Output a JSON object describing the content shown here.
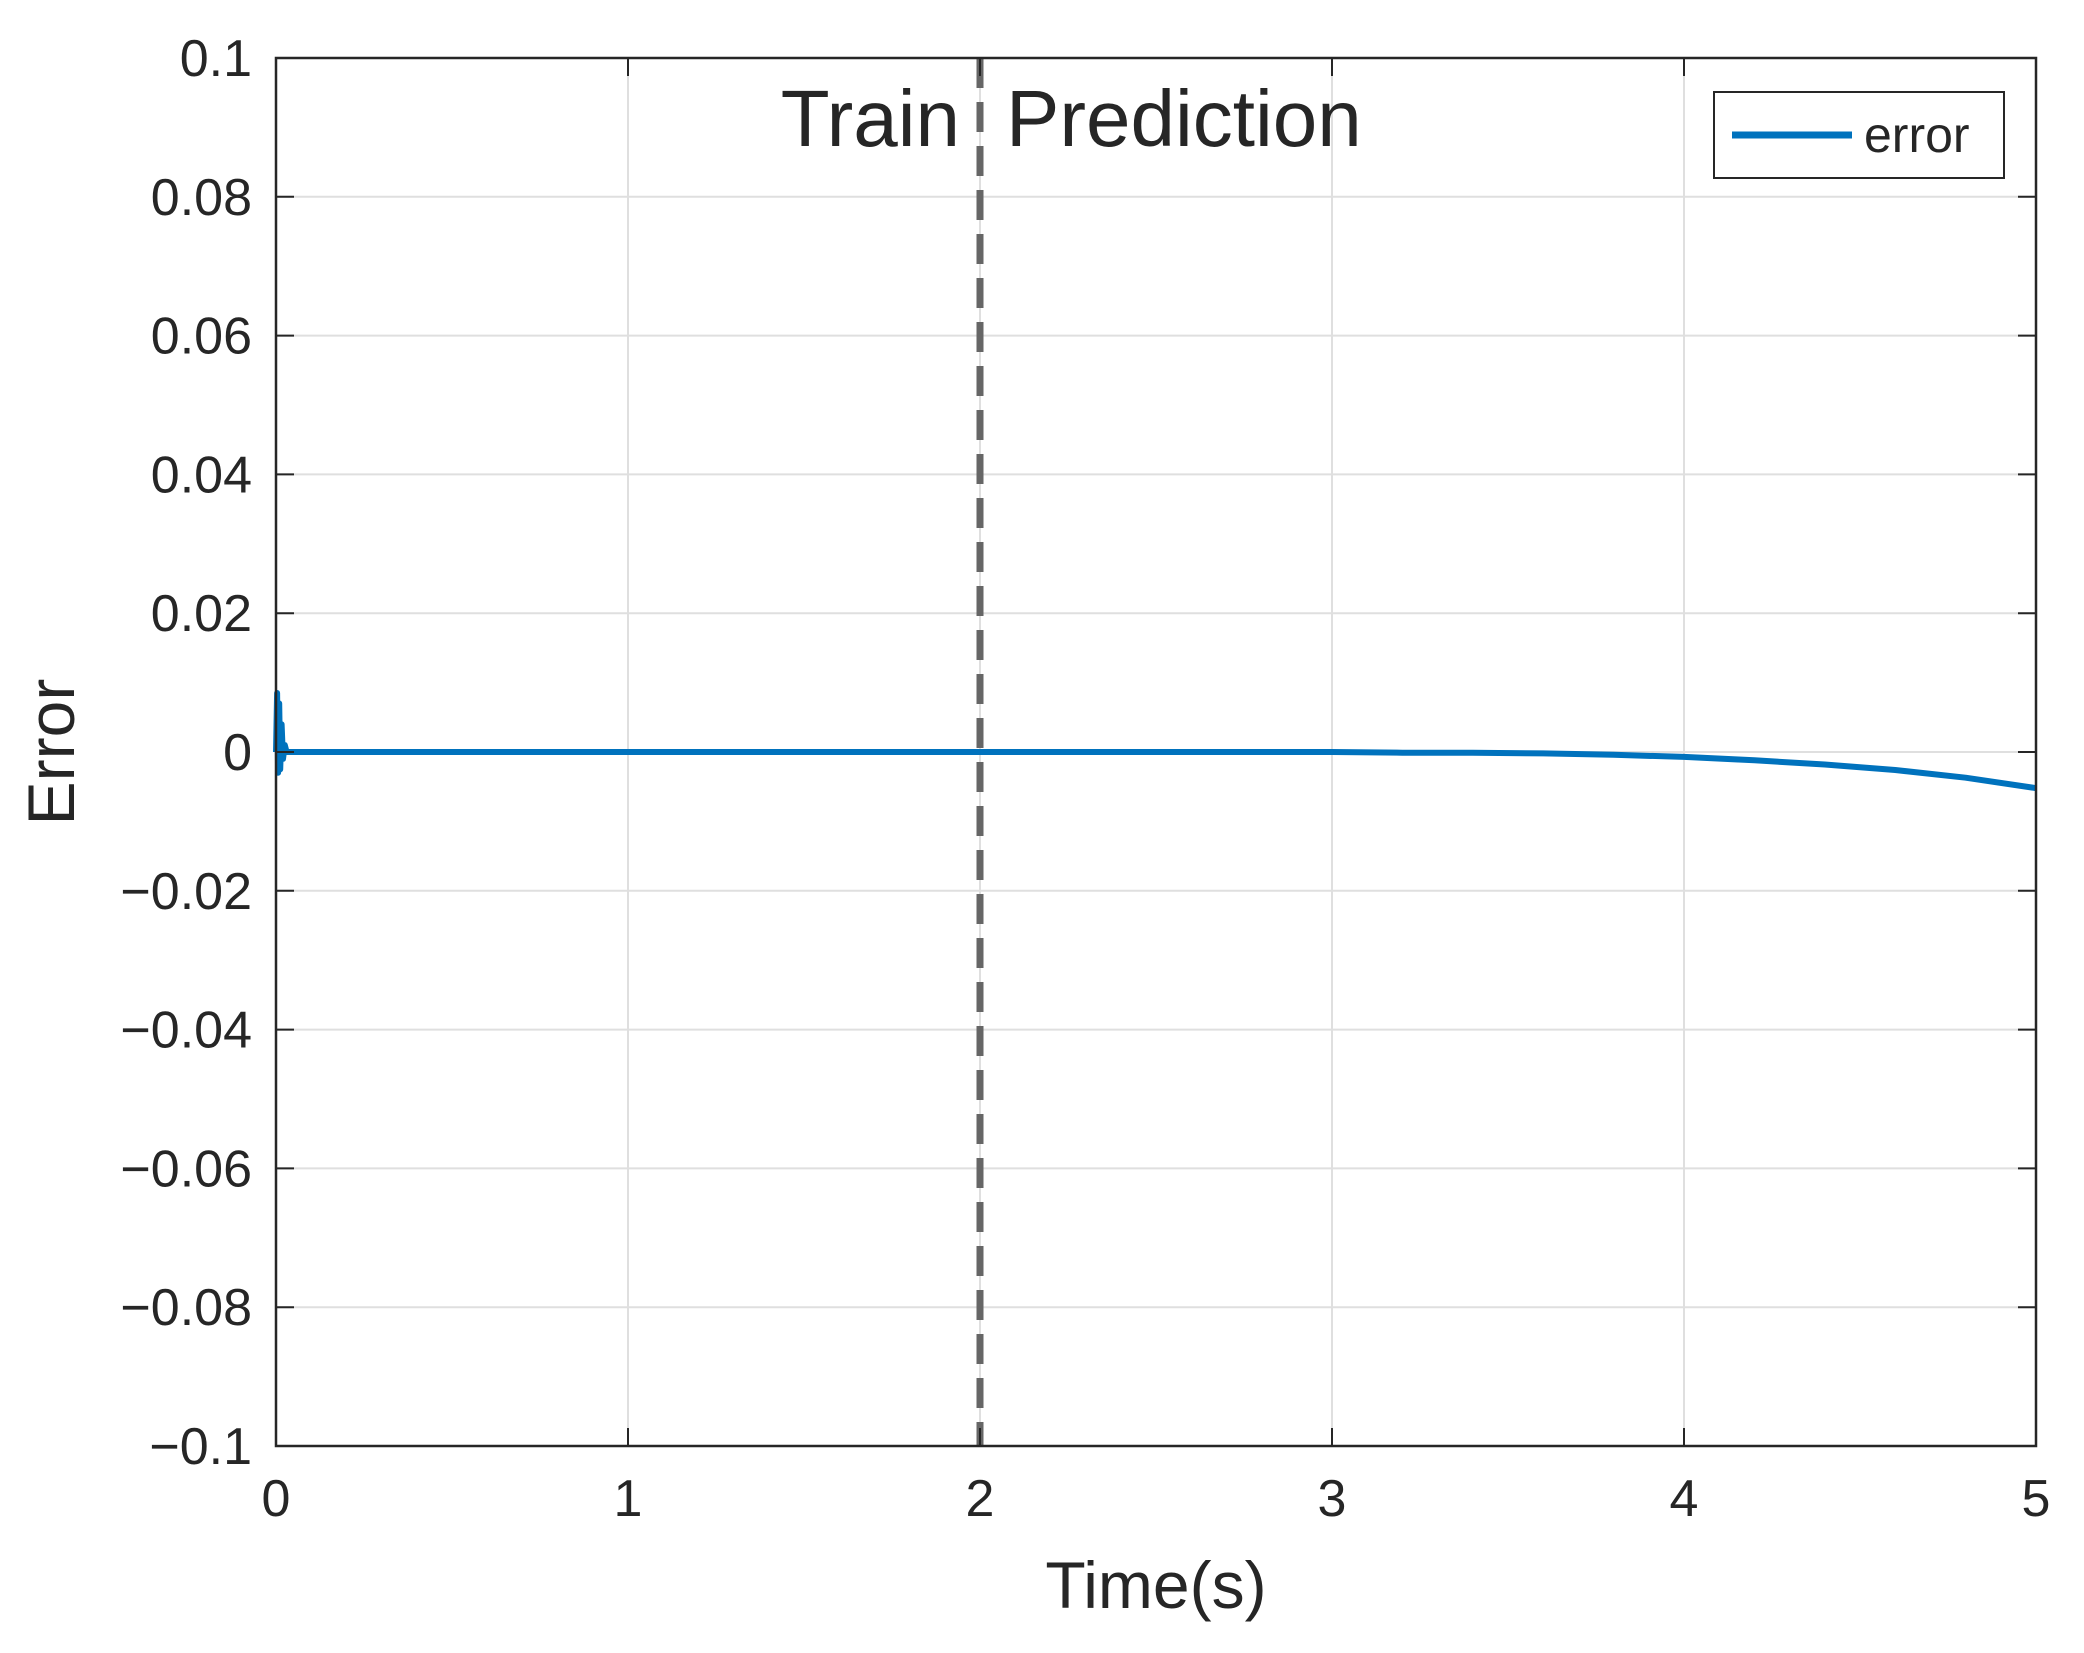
{
  "chart_data": {
    "type": "line",
    "title": "",
    "xlabel": "Time(s)",
    "ylabel": "Error",
    "xlim": [
      0,
      5
    ],
    "ylim": [
      -0.1,
      0.1
    ],
    "x_ticks": [
      0,
      1,
      2,
      3,
      4,
      5
    ],
    "x_tick_labels": [
      "0",
      "1",
      "2",
      "3",
      "4",
      "5"
    ],
    "y_ticks": [
      0.1,
      0.08,
      0.06,
      0.04,
      0.02,
      0,
      -0.02,
      -0.04,
      -0.06,
      -0.08,
      -0.1
    ],
    "y_tick_labels": [
      "0.1",
      "0.08",
      "0.06",
      "0.04",
      "0.02",
      "0",
      "−0.02",
      "−0.04",
      "−0.06",
      "−0.08",
      "−0.1"
    ],
    "grid": true,
    "legend": "top-right",
    "annotations": {
      "divider_x": 2,
      "left_label": "Train",
      "right_label": "Prediction"
    },
    "series": [
      {
        "name": "error",
        "color": "#0072BD",
        "x": [
          0,
          0.003,
          0.006,
          0.009,
          0.012,
          0.016,
          0.02,
          0.025,
          0.03,
          0.05,
          0.1,
          0.5,
          1.0,
          1.5,
          2.0,
          2.5,
          3.0,
          3.2,
          3.4,
          3.6,
          3.8,
          4.0,
          4.2,
          4.4,
          4.6,
          4.8,
          5.0
        ],
        "y": [
          0,
          0.0085,
          -0.003,
          0.007,
          -0.0025,
          0.004,
          -0.001,
          0.001,
          0,
          0,
          0,
          0,
          0,
          0,
          0,
          0,
          0,
          -0.0001,
          -0.0001,
          -0.0002,
          -0.0004,
          -0.0007,
          -0.0012,
          -0.0018,
          -0.0026,
          -0.0037,
          -0.0052
        ]
      }
    ]
  }
}
